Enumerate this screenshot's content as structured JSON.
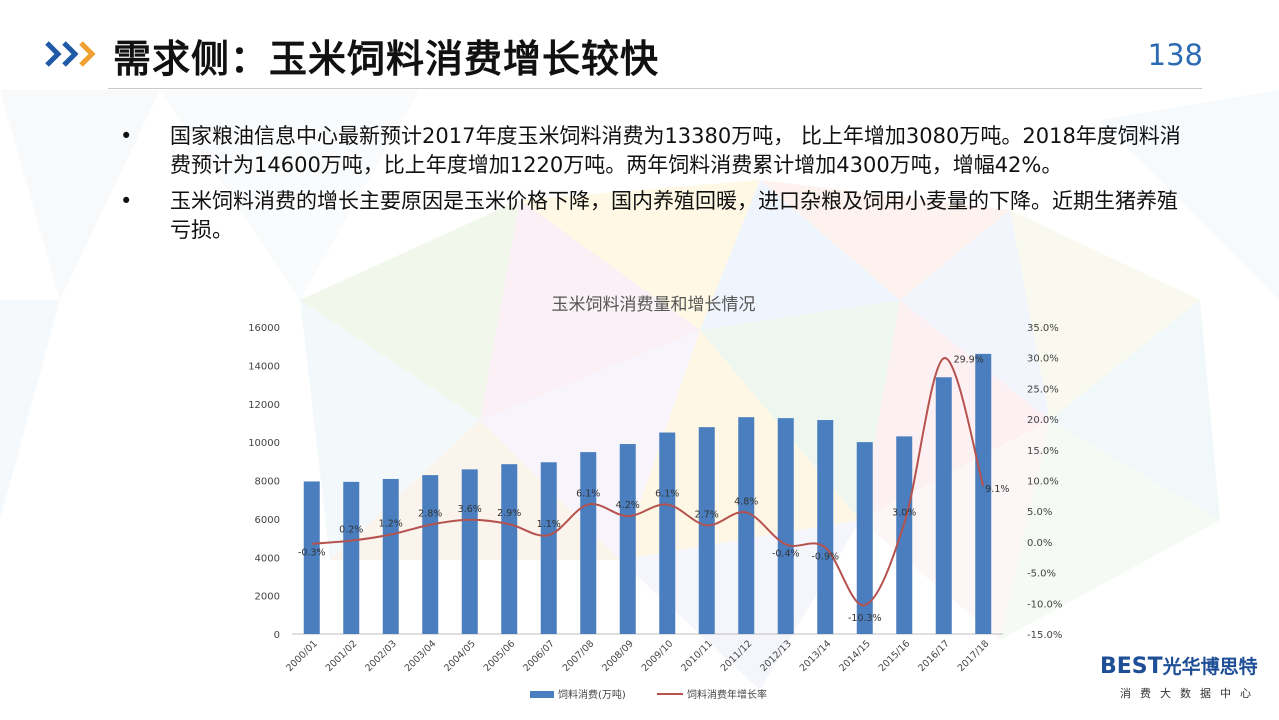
{
  "header": {
    "title": "需求侧：玉米饲料消费增长较快",
    "page_number": "138"
  },
  "bullets": [
    {
      "marker": "•",
      "text": "国家粮油信息中心最新预计2017年度玉米饲料消费为13380万吨， 比上年增加3080万吨。2018年度饲料消费预计为14600万吨，比上年度增加1220万吨。两年饲料消费累计增加4300万吨，增幅42%。"
    },
    {
      "marker": "•",
      "text": "玉米饲料消费的增长主要原因是玉米价格下降，国内养殖回暖，进口杂粮及饲用小麦量的下降。近期生猪养殖亏损。"
    }
  ],
  "logo": {
    "brand_latin": "BEST",
    "brand_cn": "光华博思特",
    "tagline": "消费大数据中心"
  },
  "colors": {
    "bar": "#4a7ebf",
    "line": "#b5524e",
    "accent": "#2d6bb3",
    "chevron_orange": "#f0a030"
  },
  "chart_data": {
    "type": "bar",
    "title": "玉米饲料消费量和增长情况",
    "categories": [
      "2000/01",
      "2001/02",
      "2002/03",
      "2003/04",
      "2004/05",
      "2005/06",
      "2006/07",
      "2007/08",
      "2008/09",
      "2009/10",
      "2010/11",
      "2011/12",
      "2012/13",
      "2013/14",
      "2014/15",
      "2015/16",
      "2016/17",
      "2017/18"
    ],
    "series": [
      {
        "name": "饲料消费(万吨)",
        "type": "bar",
        "axis": "left",
        "values": [
          7950,
          7930,
          8080,
          8280,
          8580,
          8850,
          8950,
          9480,
          9900,
          10500,
          10780,
          11300,
          11250,
          11150,
          10000,
          10300,
          13380,
          14600
        ]
      },
      {
        "name": "饲料消费年增长率",
        "type": "line",
        "axis": "right",
        "values": [
          -0.3,
          0.2,
          1.2,
          2.8,
          3.6,
          2.9,
          1.1,
          6.1,
          4.2,
          6.1,
          2.7,
          4.8,
          -0.4,
          -0.9,
          -10.3,
          3.0,
          29.9,
          9.1
        ],
        "labels": [
          "-0.3%",
          "0.2%",
          "1.2%",
          "2.8%",
          "3.6%",
          "2.9%",
          "1.1%",
          "6.1%",
          "4.2%",
          "6.1%",
          "2.7%",
          "4.8%",
          "-0.4%",
          "-0.9%",
          "-10.3%",
          "3.0%",
          "29.9%",
          "9.1%"
        ]
      }
    ],
    "y_left": {
      "min": 0,
      "max": 16000,
      "ticks": [
        "0",
        "2000",
        "4000",
        "6000",
        "8000",
        "10000",
        "12000",
        "14000",
        "16000"
      ]
    },
    "y_right": {
      "min": -15,
      "max": 35,
      "ticks": [
        "-15.0%",
        "-10.0%",
        "-5.0%",
        "0.0%",
        "5.0%",
        "10.0%",
        "15.0%",
        "20.0%",
        "25.0%",
        "30.0%",
        "35.0%"
      ]
    },
    "legend_position": "bottom",
    "grid": false
  }
}
